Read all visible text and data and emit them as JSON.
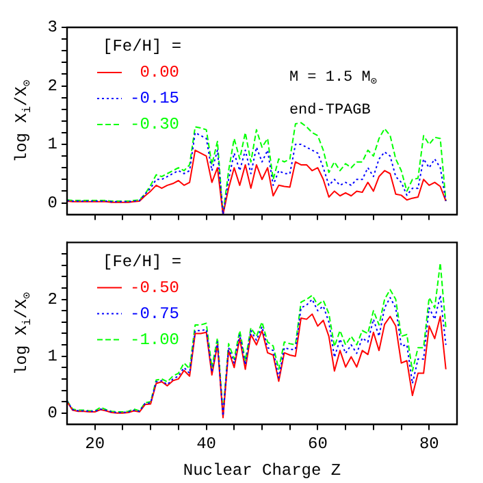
{
  "chart_data": [
    {
      "type": "line",
      "ylabel": "log X$_{i}$/X$_{⊙}$",
      "legend_title": "[Fe/H] =",
      "legend": "top left",
      "marker": "none",
      "grid": false,
      "tick_labels": "y",
      "annotations": [
        "M = 1.5 M$_{⊙}$",
        "end-TPAGB"
      ],
      "xlim": [
        15,
        85
      ],
      "xticks": [
        {
          "value": 20,
          "label": null
        },
        {
          "value": 25,
          "label": null
        },
        {
          "value": 30,
          "label": null
        },
        {
          "value": 35,
          "label": null
        },
        {
          "value": 40,
          "label": null
        },
        {
          "value": 45,
          "label": null
        },
        {
          "value": 50,
          "label": null
        },
        {
          "value": 55,
          "label": null
        },
        {
          "value": 60,
          "label": null
        },
        {
          "value": 65,
          "label": null
        },
        {
          "value": 70,
          "label": null
        },
        {
          "value": 75,
          "label": null
        },
        {
          "value": 80,
          "label": null
        }
      ],
      "ylim": [
        -0.2,
        3
      ],
      "yticks": [
        0,
        {
          "value": 0.2,
          "label": null
        },
        {
          "value": 0.4,
          "label": null
        },
        {
          "value": 0.6,
          "label": null
        },
        {
          "value": 0.8,
          "label": null
        },
        1,
        {
          "value": 1.2,
          "label": null
        },
        {
          "value": 1.4,
          "label": null
        },
        {
          "value": 1.6,
          "label": null
        },
        {
          "value": 1.8,
          "label": null
        },
        2,
        {
          "value": 2.2,
          "label": null
        },
        {
          "value": 2.4,
          "label": null
        },
        {
          "value": 2.6,
          "label": null
        },
        {
          "value": 2.8,
          "label": null
        },
        3
      ],
      "x": [
        15,
        16,
        17,
        18,
        19,
        20,
        21,
        22,
        23,
        24,
        25,
        26,
        27,
        28,
        29,
        30,
        31,
        32,
        33,
        34,
        35,
        36,
        37,
        38,
        39,
        40,
        41,
        42,
        43,
        44,
        45,
        46,
        47,
        48,
        49,
        50,
        51,
        52,
        53,
        54,
        55,
        56,
        57,
        58,
        59,
        60,
        61,
        62,
        63,
        64,
        65,
        66,
        67,
        68,
        69,
        70,
        71,
        72,
        73,
        74,
        75,
        76,
        77,
        78,
        79,
        80,
        81,
        82,
        83
      ],
      "series": [
        {
          "name": "0.00",
          "color": "#ff0000",
          "line_style": "solid",
          "values": [
            0.03,
            0.02,
            0.02,
            0.02,
            0.02,
            0.02,
            0.02,
            0.02,
            0.01,
            0.01,
            0.01,
            0.01,
            0.02,
            0.03,
            0.12,
            0.2,
            0.3,
            0.25,
            0.3,
            0.33,
            0.38,
            0.3,
            0.35,
            0.9,
            0.85,
            0.8,
            0.35,
            0.6,
            -0.2,
            0.25,
            0.6,
            0.3,
            0.65,
            0.25,
            0.65,
            0.4,
            0.6,
            0.12,
            0.3,
            0.28,
            0.27,
            0.7,
            0.65,
            0.65,
            0.55,
            0.6,
            0.4,
            0.1,
            0.2,
            0.12,
            0.17,
            0.12,
            0.2,
            0.18,
            0.35,
            0.2,
            0.45,
            0.55,
            0.5,
            0.15,
            0.13,
            0.05,
            0.08,
            0.1,
            0.4,
            0.3,
            0.35,
            0.28,
            0.03
          ]
        },
        {
          "name": "-0.15",
          "color": "#0000ff",
          "line_style": "dotted",
          "values": [
            0.04,
            0.03,
            0.03,
            0.03,
            0.03,
            0.03,
            0.03,
            0.03,
            0.02,
            0.02,
            0.02,
            0.02,
            0.03,
            0.04,
            0.15,
            0.25,
            0.4,
            0.4,
            0.45,
            0.5,
            0.55,
            0.5,
            0.55,
            1.2,
            1.15,
            1.1,
            0.55,
            0.9,
            -0.2,
            0.4,
            0.85,
            0.55,
            0.9,
            0.5,
            0.95,
            0.7,
            0.9,
            0.3,
            0.55,
            0.5,
            0.5,
            1.0,
            1.0,
            0.95,
            0.9,
            0.85,
            0.6,
            0.3,
            0.4,
            0.3,
            0.35,
            0.3,
            0.4,
            0.4,
            0.6,
            0.45,
            0.75,
            0.87,
            0.8,
            0.45,
            0.35,
            0.13,
            0.25,
            0.25,
            0.75,
            0.6,
            0.75,
            0.6,
            0.03
          ]
        },
        {
          "name": "-0.30",
          "color": "#00ff00",
          "line_style": "dashed",
          "values": [
            0.05,
            0.04,
            0.04,
            0.04,
            0.04,
            0.04,
            0.04,
            0.04,
            0.03,
            0.03,
            0.03,
            0.03,
            0.04,
            0.05,
            0.15,
            0.3,
            0.48,
            0.45,
            0.5,
            0.55,
            0.6,
            0.55,
            0.65,
            1.3,
            1.28,
            1.25,
            0.65,
            1.05,
            -0.2,
            0.55,
            1.1,
            0.75,
            1.2,
            0.7,
            1.25,
            0.95,
            1.1,
            0.4,
            0.75,
            0.7,
            0.75,
            1.35,
            1.37,
            1.3,
            1.2,
            1.15,
            0.9,
            0.52,
            0.7,
            0.55,
            0.67,
            0.6,
            0.7,
            0.7,
            0.9,
            0.8,
            1.1,
            1.27,
            1.15,
            0.75,
            0.55,
            0.2,
            0.4,
            0.42,
            1.15,
            1.0,
            1.12,
            1.1,
            0.03
          ]
        }
      ]
    },
    {
      "type": "line",
      "xlabel": "Nuclear Charge Z",
      "ylabel": "log X$_{i}$/X$_{⊙}$",
      "legend_title": "[Fe/H] =",
      "legend": "top left",
      "marker": "none",
      "grid": false,
      "xlim": [
        15,
        85
      ],
      "xticks": [
        20,
        {
          "value": 25,
          "label": null
        },
        {
          "value": 30,
          "label": null
        },
        {
          "value": 35,
          "label": null
        },
        40,
        {
          "value": 45,
          "label": null
        },
        {
          "value": 50,
          "label": null
        },
        {
          "value": 55,
          "label": null
        },
        60,
        {
          "value": 65,
          "label": null
        },
        {
          "value": 70,
          "label": null
        },
        {
          "value": 75,
          "label": null
        },
        80
      ],
      "ylim": [
        -0.2,
        3
      ],
      "yticks": [
        0,
        {
          "value": 0.2,
          "label": null
        },
        {
          "value": 0.4,
          "label": null
        },
        {
          "value": 0.6,
          "label": null
        },
        {
          "value": 0.8,
          "label": null
        },
        1,
        {
          "value": 1.2,
          "label": null
        },
        {
          "value": 1.4,
          "label": null
        },
        {
          "value": 1.6,
          "label": null
        },
        {
          "value": 1.8,
          "label": null
        },
        2,
        {
          "value": 2.2,
          "label": null
        },
        {
          "value": 2.4,
          "label": null
        },
        {
          "value": 2.6,
          "label": null
        },
        {
          "value": 2.8,
          "label": null
        }
      ],
      "x": [
        15,
        16,
        17,
        18,
        19,
        20,
        21,
        22,
        23,
        24,
        25,
        26,
        27,
        28,
        29,
        30,
        31,
        32,
        33,
        34,
        35,
        36,
        37,
        38,
        39,
        40,
        41,
        42,
        43,
        44,
        45,
        46,
        47,
        48,
        49,
        50,
        51,
        52,
        53,
        54,
        55,
        56,
        57,
        58,
        59,
        60,
        61,
        62,
        63,
        64,
        65,
        66,
        67,
        68,
        69,
        70,
        71,
        72,
        73,
        74,
        75,
        76,
        77,
        78,
        79,
        80,
        81,
        82,
        83
      ],
      "series": [
        {
          "name": "-0.50",
          "color": "#ff0000",
          "line_style": "solid",
          "values": [
            0.2,
            0.05,
            0.03,
            0.03,
            0.02,
            0.02,
            0.06,
            0.04,
            0.01,
            0.0,
            0.0,
            0.01,
            0.04,
            0.02,
            0.15,
            0.16,
            0.52,
            0.55,
            0.48,
            0.57,
            0.6,
            0.75,
            0.65,
            1.4,
            1.4,
            1.42,
            0.67,
            1.2,
            -0.08,
            1.1,
            0.8,
            1.31,
            0.77,
            1.38,
            1.2,
            1.45,
            1.06,
            1.02,
            0.56,
            1.06,
            1.02,
            1.0,
            1.67,
            1.65,
            1.74,
            1.53,
            1.63,
            1.35,
            0.74,
            1.1,
            0.81,
            0.99,
            0.81,
            1.1,
            1.03,
            1.42,
            1.1,
            1.56,
            1.7,
            1.53,
            0.88,
            0.92,
            0.31,
            0.7,
            0.7,
            1.53,
            1.31,
            1.7,
            0.77
          ]
        },
        {
          "name": "-0.75",
          "color": "#0000ff",
          "line_style": "dotted",
          "values": [
            0.21,
            0.06,
            0.04,
            0.04,
            0.03,
            0.03,
            0.07,
            0.05,
            0.02,
            0.01,
            0.01,
            0.02,
            0.05,
            0.03,
            0.17,
            0.18,
            0.55,
            0.57,
            0.5,
            0.6,
            0.65,
            0.8,
            0.7,
            1.45,
            1.45,
            1.47,
            0.72,
            1.25,
            -0.05,
            1.15,
            0.88,
            1.38,
            0.85,
            1.45,
            1.28,
            1.52,
            1.15,
            1.1,
            0.62,
            1.15,
            1.12,
            1.12,
            1.85,
            1.9,
            2.0,
            1.8,
            1.88,
            1.6,
            0.98,
            1.3,
            1.05,
            1.2,
            1.05,
            1.32,
            1.25,
            1.65,
            1.35,
            1.85,
            2.03,
            1.85,
            1.18,
            1.2,
            0.52,
            0.95,
            0.95,
            1.85,
            1.65,
            2.07,
            1.2
          ]
        },
        {
          "name": "-1.00",
          "color": "#00ff00",
          "line_style": "dashed",
          "values": [
            0.22,
            0.07,
            0.05,
            0.05,
            0.04,
            0.04,
            0.1,
            0.06,
            0.03,
            0.02,
            0.02,
            0.03,
            0.07,
            0.04,
            0.18,
            0.2,
            0.58,
            0.6,
            0.55,
            0.65,
            0.7,
            0.88,
            0.78,
            1.55,
            1.55,
            1.58,
            0.8,
            1.32,
            0.0,
            1.22,
            0.95,
            1.45,
            0.92,
            1.5,
            1.35,
            1.6,
            1.25,
            1.18,
            0.77,
            1.25,
            1.22,
            1.2,
            1.95,
            2.0,
            2.07,
            1.9,
            1.98,
            1.75,
            1.17,
            1.45,
            1.2,
            1.35,
            1.2,
            1.45,
            1.4,
            1.8,
            1.55,
            2.0,
            2.17,
            2.0,
            1.35,
            1.38,
            0.74,
            1.15,
            1.15,
            2.03,
            1.85,
            2.64,
            1.5
          ]
        }
      ]
    }
  ]
}
